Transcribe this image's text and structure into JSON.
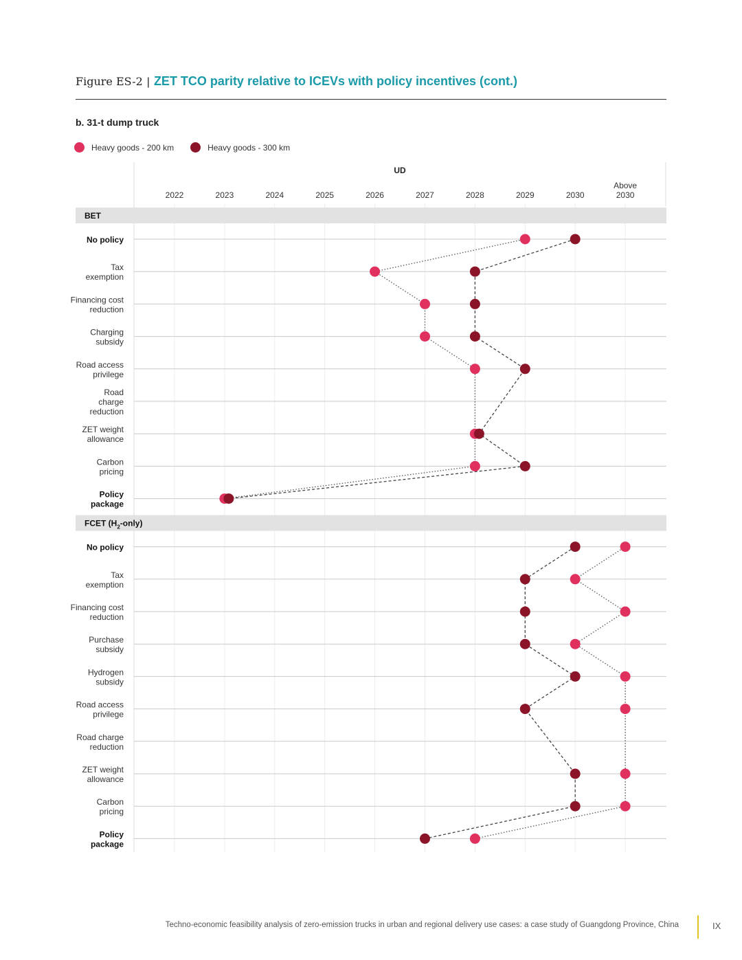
{
  "figure": {
    "label": "Figure ES-2",
    "separator": "|",
    "title": "ZET TCO parity relative to ICEVs with policy incentives (cont.)"
  },
  "subtitle": "b. 31-t dump truck",
  "legend": [
    {
      "label": "Heavy goods - 200 km",
      "color": "#e0305e"
    },
    {
      "label": "Heavy goods - 300 km",
      "color": "#8b1428"
    }
  ],
  "chart_data": {
    "type": "scatter",
    "column_group_label": "UD",
    "x_ticks": [
      {
        "key": "2022",
        "lines": [
          "2022"
        ]
      },
      {
        "key": "2023",
        "lines": [
          "2023"
        ]
      },
      {
        "key": "2024",
        "lines": [
          "2024"
        ]
      },
      {
        "key": "2025",
        "lines": [
          "2025"
        ]
      },
      {
        "key": "2026",
        "lines": [
          "2026"
        ]
      },
      {
        "key": "2027",
        "lines": [
          "2027"
        ]
      },
      {
        "key": "2028",
        "lines": [
          "2028"
        ]
      },
      {
        "key": "2029",
        "lines": [
          "2029"
        ]
      },
      {
        "key": "2030",
        "lines": [
          "2030"
        ]
      },
      {
        "key": "Above 2030",
        "lines": [
          "Above",
          "2030"
        ]
      }
    ],
    "sections": [
      {
        "name": "BET",
        "rows": [
          {
            "label": [
              "No policy"
            ],
            "bold": true,
            "hg200": "2029",
            "hg300": "2030"
          },
          {
            "label": [
              "Tax",
              "exemption"
            ],
            "bold": false,
            "hg200": "2026",
            "hg300": "2028"
          },
          {
            "label": [
              "Financing cost",
              "reduction"
            ],
            "bold": false,
            "hg200": "2027",
            "hg300": "2028"
          },
          {
            "label": [
              "Charging",
              "subsidy"
            ],
            "bold": false,
            "hg200": "2027",
            "hg300": "2028"
          },
          {
            "label": [
              "Road access",
              "privilege"
            ],
            "bold": false,
            "hg200": "2028",
            "hg300": "2029"
          },
          {
            "label": [
              "Road",
              "charge",
              "reduction"
            ],
            "bold": false,
            "hg200": null,
            "hg300": null
          },
          {
            "label": [
              "ZET weight",
              "allowance"
            ],
            "bold": false,
            "hg200": "2028",
            "hg300": "2028"
          },
          {
            "label": [
              "Carbon",
              "pricing"
            ],
            "bold": false,
            "hg200": "2028",
            "hg300": "2029"
          },
          {
            "label": [
              "Policy",
              "package"
            ],
            "bold": true,
            "hg200": "2023",
            "hg300": "2023"
          }
        ]
      },
      {
        "name": "FCET (H2-only)",
        "name_parts": [
          "FCET (H",
          "2",
          "-only)"
        ],
        "rows": [
          {
            "label": [
              "No policy"
            ],
            "bold": true,
            "hg200": "Above 2030",
            "hg300": "2030"
          },
          {
            "label": [
              "Tax",
              "exemption"
            ],
            "bold": false,
            "hg200": "2030",
            "hg300": "2029"
          },
          {
            "label": [
              "Financing cost",
              "reduction"
            ],
            "bold": false,
            "hg200": "Above 2030",
            "hg300": "2029"
          },
          {
            "label": [
              "Purchase",
              "subsidy"
            ],
            "bold": false,
            "hg200": "2030",
            "hg300": "2029"
          },
          {
            "label": [
              "Hydrogen",
              "subsidy"
            ],
            "bold": false,
            "hg200": "Above 2030",
            "hg300": "2030"
          },
          {
            "label": [
              "Road access",
              "privilege"
            ],
            "bold": false,
            "hg200": "Above 2030",
            "hg300": "2029"
          },
          {
            "label": [
              "Road charge",
              "reduction"
            ],
            "bold": false,
            "hg200": null,
            "hg300": null
          },
          {
            "label": [
              "ZET weight",
              "allowance"
            ],
            "bold": false,
            "hg200": "Above 2030",
            "hg300": "2030"
          },
          {
            "label": [
              "Carbon",
              "pricing"
            ],
            "bold": false,
            "hg200": "Above 2030",
            "hg300": "2030"
          },
          {
            "label": [
              "Policy",
              "package"
            ],
            "bold": true,
            "hg200": "2028",
            "hg300": "2027"
          }
        ]
      }
    ]
  },
  "footer": {
    "text": "Techno-economic feasibility analysis of zero-emission trucks in urban and regional delivery use cases: a case study of Guangdong Province, China",
    "page": "IX"
  }
}
